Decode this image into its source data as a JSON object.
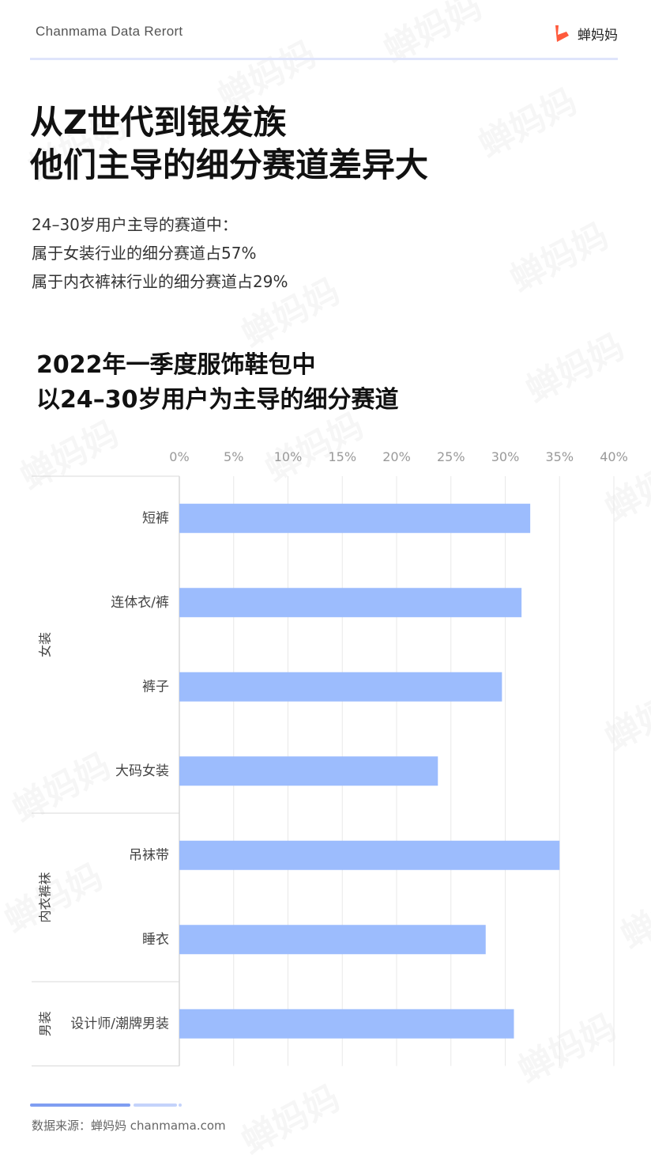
{
  "header": {
    "brand_text": "Chanmama Data Rerort",
    "logo_text": "蝉妈妈",
    "logo_color": "#ff5a3c"
  },
  "title": {
    "line1": "从Z世代到银发族",
    "line2": "他们主导的细分赛道差异大"
  },
  "summary": {
    "line1": "24–30岁用户主导的赛道中：",
    "line2": "属于女装行业的细分赛道占57%",
    "line3": "属于内衣裤袜行业的细分赛道占29%"
  },
  "chart_title": {
    "line1": "2022年一季度服饰鞋包中",
    "line2": "以24–30岁用户为主导的细分赛道"
  },
  "chart_data": {
    "type": "bar",
    "orientation": "horizontal",
    "categories": [
      "短裤",
      "连体衣/裤",
      "裤子",
      "大码女装",
      "吊袜带",
      "睡衣",
      "设计师/潮牌男装"
    ],
    "groups": [
      {
        "name": "女装",
        "categories": [
          "短裤",
          "连体衣/裤",
          "裤子",
          "大码女装"
        ]
      },
      {
        "name": "内衣裤袜",
        "categories": [
          "吊袜带",
          "睡衣"
        ]
      },
      {
        "name": "男装",
        "categories": [
          "设计师/潮牌男装"
        ]
      }
    ],
    "values": [
      32.3,
      31.5,
      29.7,
      23.8,
      35.0,
      28.2,
      30.8
    ],
    "x_ticks": [
      "0%",
      "5%",
      "10%",
      "15%",
      "20%",
      "25%",
      "30%",
      "35%",
      "40%"
    ],
    "xlim": [
      0,
      40
    ],
    "unit": "%",
    "bar_color": "#9cbcfd",
    "grid": true
  },
  "footer": {
    "source_text": "数据来源：蝉妈妈 chanmama.com",
    "bar_color_dark": "#7f9ef2",
    "bar_color_light": "#c4d3fb"
  },
  "watermark_text": "蝉妈妈"
}
